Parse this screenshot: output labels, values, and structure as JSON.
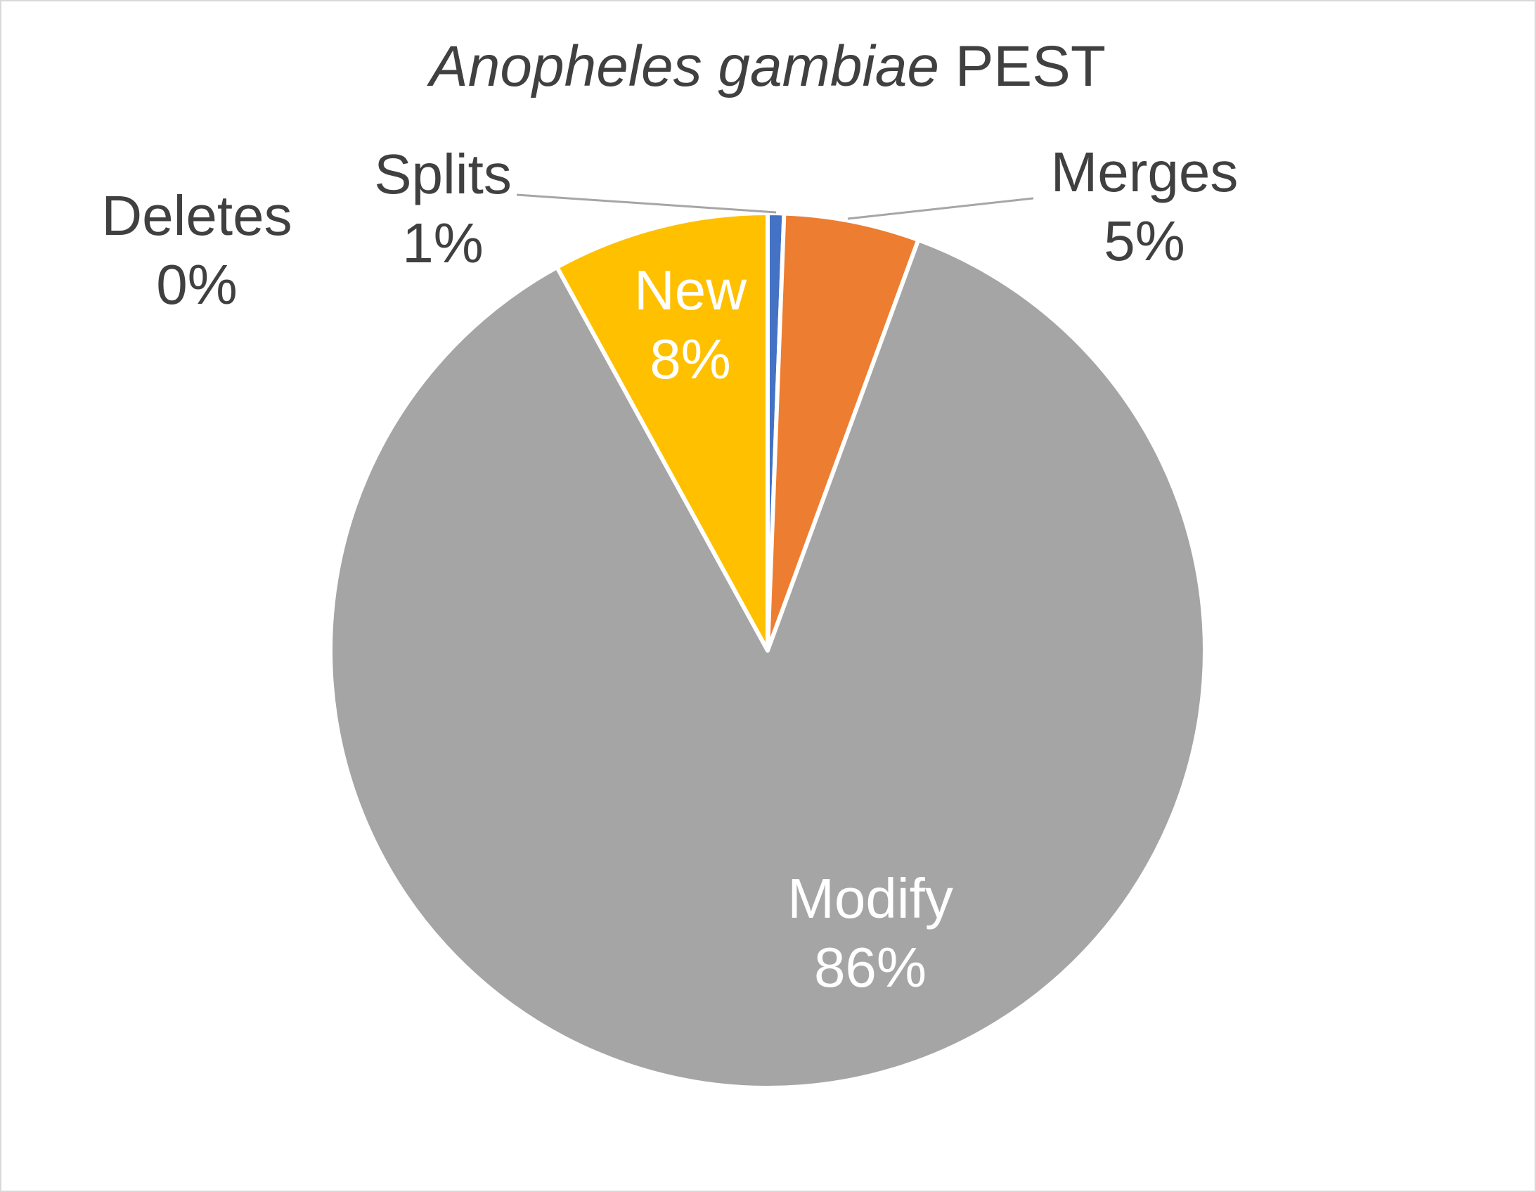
{
  "chart_data": {
    "type": "pie",
    "title_italic": "Anopheles gambiae",
    "title_rest": " PEST",
    "start_angle_deg": 0,
    "direction": "clockwise",
    "slices": [
      {
        "name": "Splits",
        "value": 0.6,
        "label": "1%",
        "color": "#4472c4"
      },
      {
        "name": "Merges",
        "value": 5.0,
        "label": "5%",
        "color": "#ed7d31"
      },
      {
        "name": "Modify",
        "value": 86.4,
        "label": "86%",
        "color": "#a5a5a5"
      },
      {
        "name": "New",
        "value": 8.0,
        "label": "8%",
        "color": "#ffc000"
      },
      {
        "name": "Deletes",
        "value": 0.0,
        "label": "0%",
        "color": "#5b9bd5"
      }
    ]
  }
}
